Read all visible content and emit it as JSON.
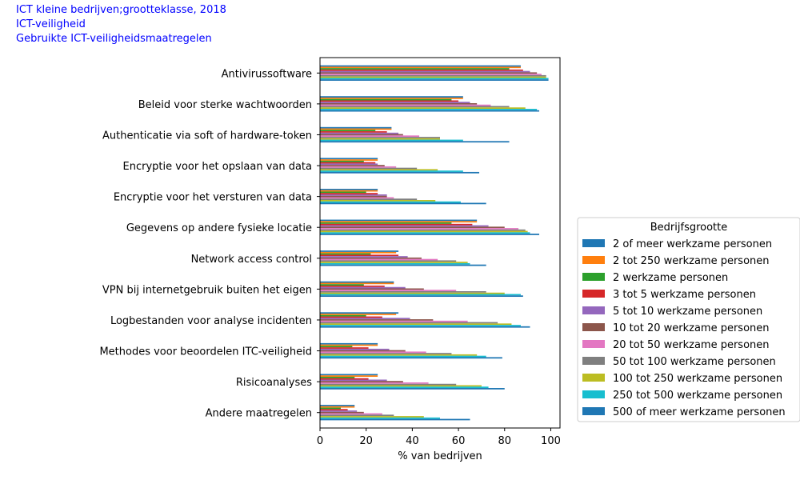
{
  "header": {
    "line1": "ICT kleine bedrijven;grootteklasse, 2018",
    "line2": "ICT-veiligheid",
    "line3": "Gebruikte ICT-veiligheidsmaatregelen"
  },
  "chart_data": {
    "type": "bar",
    "orientation": "horizontal",
    "title": "",
    "xlabel": "% van bedrijven",
    "ylabel": "",
    "xlim": [
      0,
      104
    ],
    "xticks": [
      0,
      20,
      40,
      60,
      80,
      100
    ],
    "grid": false,
    "legend_title": "Bedrijfsgrootte",
    "legend_position": "right",
    "categories": [
      "Antivirussoftware",
      "Beleid voor sterke wachtwoorden",
      "Authenticatie via soft of hardware-token",
      "Encryptie voor het opslaan van data",
      "Encryptie voor het versturen van data",
      "Gegevens op andere fysieke locatie",
      "Network access control",
      "VPN bij internetgebruik buiten het eigen",
      "Logbestanden voor analyse incidenten",
      "Methodes voor beoordelen ITC-veiligheid",
      "Risicoanalyses",
      "Andere maatregelen"
    ],
    "series": [
      {
        "name": "2 of meer werkzame personen",
        "color": "#1f77b4",
        "values": [
          87,
          62,
          31,
          25,
          25,
          68,
          34,
          32,
          34,
          25,
          25,
          15
        ]
      },
      {
        "name": "2 tot 250 werkzame personen",
        "color": "#ff7f0e",
        "values": [
          87,
          62,
          31,
          25,
          25,
          68,
          33,
          32,
          33,
          25,
          25,
          15
        ]
      },
      {
        "name": "2 werkzame personen",
        "color": "#2ca02c",
        "values": [
          82,
          57,
          24,
          19,
          20,
          57,
          22,
          19,
          20,
          14,
          15,
          9
        ]
      },
      {
        "name": "3 tot 5 werkzame personen",
        "color": "#d62728",
        "values": [
          88,
          60,
          29,
          24,
          25,
          66,
          34,
          28,
          27,
          21,
          21,
          12
        ]
      },
      {
        "name": "5 tot 10 werkzame personen",
        "color": "#9467bd",
        "values": [
          91,
          65,
          34,
          25,
          29,
          73,
          38,
          37,
          39,
          30,
          29,
          16
        ]
      },
      {
        "name": "10 tot 20 werkzame personen",
        "color": "#8c564b",
        "values": [
          94,
          68,
          36,
          28,
          29,
          80,
          44,
          45,
          49,
          37,
          36,
          19
        ]
      },
      {
        "name": "20 tot 50 werkzame personen",
        "color": "#e377c2",
        "values": [
          96,
          74,
          43,
          33,
          32,
          86,
          51,
          59,
          64,
          46,
          47,
          27
        ]
      },
      {
        "name": "50 tot 100 werkzame personen",
        "color": "#7f7f7f",
        "values": [
          98,
          82,
          52,
          42,
          42,
          89,
          59,
          72,
          77,
          57,
          59,
          32
        ]
      },
      {
        "name": "100 tot 250 werkzame personen",
        "color": "#bcbd22",
        "values": [
          98,
          89,
          52,
          51,
          50,
          90,
          64,
          80,
          83,
          68,
          70,
          45
        ]
      },
      {
        "name": "250 tot 500 werkzame personen",
        "color": "#17becf",
        "values": [
          99,
          94,
          62,
          62,
          61,
          91,
          65,
          87,
          87,
          72,
          73,
          52
        ]
      },
      {
        "name": "500 of meer werkzame personen",
        "color": "#1f77b4",
        "values": [
          99,
          95,
          82,
          69,
          72,
          95,
          72,
          88,
          91,
          79,
          80,
          65
        ]
      }
    ]
  }
}
